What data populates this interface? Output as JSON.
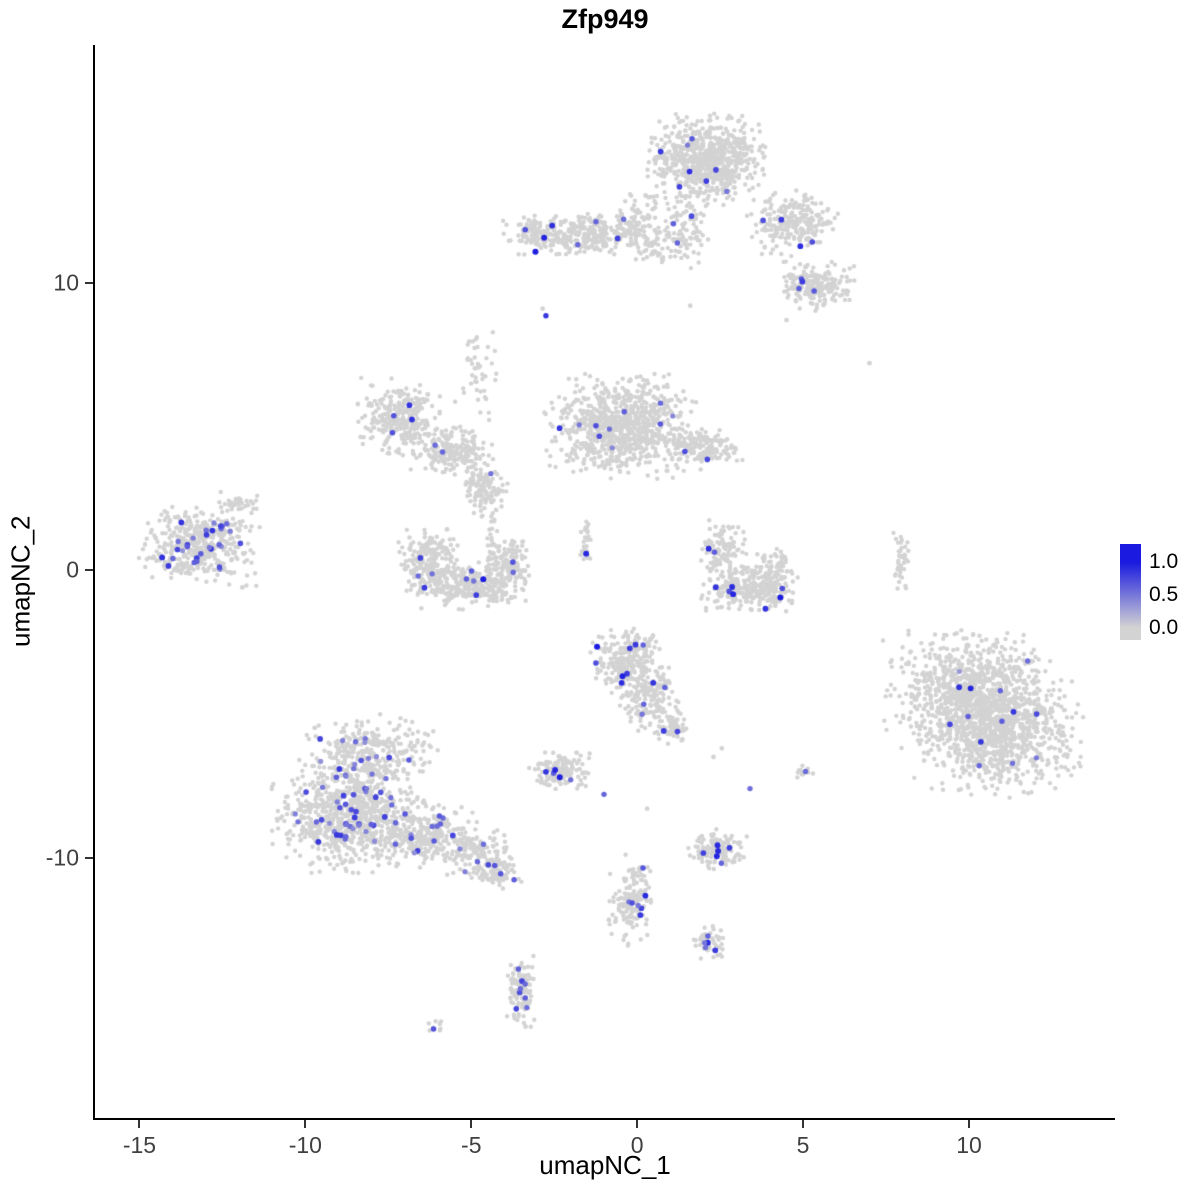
{
  "chart_data": {
    "type": "scatter",
    "title": "Zfp949",
    "xlabel": "umapNC_1",
    "ylabel": "umapNC_2",
    "xlim": [
      -16.34,
      14.4
    ],
    "ylim": [
      -19.06,
      18.27
    ],
    "x_ticks": [
      -15,
      -10,
      -5,
      0,
      5,
      10
    ],
    "y_ticks": [
      -10,
      0,
      10
    ],
    "grid": false,
    "legend": {
      "position": "right",
      "tick_labels": [
        "1.0",
        "0.5",
        "0.0"
      ],
      "tick_values": [
        1.0,
        0.5,
        0.0
      ]
    },
    "style": {
      "background": "#ffffff",
      "axis_color": "#000000",
      "tick_color": "#333333",
      "tick_label_color": "#404040",
      "base_point_color": "#d3d3d3",
      "low_color": "#d3d3d3",
      "high_color": "#1a1ae0"
    },
    "clusters": [
      {
        "name": "top-main",
        "cx": 2.1,
        "cy": 14.3,
        "sx": 0.78,
        "sy": 0.68,
        "n": 700,
        "en": 8,
        "ev": [
          0.45,
          1.0
        ]
      },
      {
        "name": "top-bridge",
        "cx": 0.0,
        "cy": 12.5,
        "sx": 0.55,
        "sy": 0.4,
        "n": 60,
        "en": 1,
        "ev": [
          0.5,
          0.7
        ]
      },
      {
        "name": "top-trail",
        "cx": 1.45,
        "cy": 11.9,
        "sx": 0.3,
        "sy": 0.6,
        "n": 80,
        "en": 2,
        "ev": [
          0.5,
          0.8
        ]
      },
      {
        "name": "top-right",
        "cx": 4.7,
        "cy": 12.1,
        "sx": 0.6,
        "sy": 0.5,
        "n": 230,
        "en": 4,
        "ev": [
          0.5,
          1.0
        ]
      },
      {
        "name": "right-upper",
        "cx": 5.4,
        "cy": 9.9,
        "sx": 0.5,
        "sy": 0.38,
        "n": 190,
        "en": 4,
        "ev": [
          0.6,
          1.0
        ]
      },
      {
        "name": "band-top",
        "cx": -1.6,
        "cy": 11.7,
        "sx": 1.05,
        "sy": 0.34,
        "n": 320,
        "en": 5,
        "ev": [
          0.5,
          1.0
        ]
      },
      {
        "name": "band-left-cap",
        "cx": -3.1,
        "cy": 11.65,
        "sx": 0.26,
        "sy": 0.3,
        "n": 70,
        "en": 2,
        "ev": [
          0.85,
          1.0
        ]
      },
      {
        "name": "band-right",
        "cx": 0.6,
        "cy": 11.35,
        "sx": 0.4,
        "sy": 0.3,
        "n": 60,
        "en": 1,
        "ev": [
          0.5,
          0.8
        ]
      },
      {
        "name": "mid-main",
        "cx": -0.5,
        "cy": 5.0,
        "sx": 0.98,
        "sy": 0.78,
        "n": 820,
        "en": 10,
        "ev": [
          0.4,
          0.95
        ]
      },
      {
        "name": "mid-right-ext",
        "cx": 2.0,
        "cy": 4.2,
        "sx": 0.5,
        "sy": 0.3,
        "n": 150,
        "en": 2,
        "ev": [
          0.5,
          0.9
        ]
      },
      {
        "name": "arc-left-a",
        "cx": -7.1,
        "cy": 5.3,
        "sx": 0.6,
        "sy": 0.6,
        "n": 280,
        "en": 4,
        "ev": [
          0.5,
          0.9
        ]
      },
      {
        "name": "arc-left-b",
        "cx": -5.6,
        "cy": 4.1,
        "sx": 0.55,
        "sy": 0.4,
        "n": 200,
        "en": 2,
        "ev": [
          0.4,
          0.8
        ]
      },
      {
        "name": "arc-left-trail",
        "cx": -4.8,
        "cy": 6.9,
        "sx": 0.3,
        "sy": 0.75,
        "n": 45,
        "en": 0,
        "ev": [
          0,
          0
        ]
      },
      {
        "name": "mid-small",
        "cx": -4.6,
        "cy": 2.8,
        "sx": 0.3,
        "sy": 0.35,
        "n": 110,
        "en": 1,
        "ev": [
          0.5,
          0.7
        ]
      },
      {
        "name": "mid-vtrail",
        "cx": -4.4,
        "cy": 1.2,
        "sx": 0.16,
        "sy": 0.8,
        "n": 35,
        "en": 0,
        "ev": [
          0,
          0
        ]
      },
      {
        "name": "far-left",
        "cx": -13.2,
        "cy": 0.9,
        "sx": 0.78,
        "sy": 0.62,
        "n": 430,
        "en": 30,
        "ev": [
          0.35,
          0.9
        ]
      },
      {
        "name": "far-left-cap",
        "cx": -12.0,
        "cy": 2.3,
        "sx": 0.28,
        "sy": 0.18,
        "n": 40,
        "en": 0,
        "ev": [
          0,
          0
        ]
      },
      {
        "name": "u-left-a",
        "cx": -6.3,
        "cy": 0.4,
        "sx": 0.45,
        "sy": 0.45,
        "n": 180,
        "en": 3,
        "ev": [
          0.5,
          0.9
        ]
      },
      {
        "name": "u-left-b",
        "cx": -5.1,
        "cy": -0.55,
        "sx": 0.85,
        "sy": 0.35,
        "n": 320,
        "en": 6,
        "ev": [
          0.5,
          1.0
        ]
      },
      {
        "name": "u-left-c",
        "cx": -3.9,
        "cy": 0.3,
        "sx": 0.3,
        "sy": 0.42,
        "n": 110,
        "en": 2,
        "ev": [
          0.5,
          0.8
        ]
      },
      {
        "name": "tiny-strip",
        "cx": -1.55,
        "cy": 0.9,
        "sx": 0.1,
        "sy": 0.4,
        "n": 25,
        "en": 1,
        "ev": [
          0.9,
          1.0
        ]
      },
      {
        "name": "u-right-a",
        "cx": 2.6,
        "cy": 0.7,
        "sx": 0.3,
        "sy": 0.45,
        "n": 100,
        "en": 2,
        "ev": [
          0.6,
          1.0
        ]
      },
      {
        "name": "u-right-b",
        "cx": 3.1,
        "cy": -0.6,
        "sx": 0.5,
        "sy": 0.35,
        "n": 190,
        "en": 4,
        "ev": [
          0.7,
          1.0
        ]
      },
      {
        "name": "u-right-c",
        "cx": 4.1,
        "cy": -0.4,
        "sx": 0.35,
        "sy": 0.5,
        "n": 150,
        "en": 3,
        "ev": [
          0.7,
          1.0
        ]
      },
      {
        "name": "cent-a",
        "cx": -0.3,
        "cy": -3.2,
        "sx": 0.5,
        "sy": 0.55,
        "n": 240,
        "en": 8,
        "ev": [
          0.5,
          1.0
        ]
      },
      {
        "name": "cent-b",
        "cx": 0.4,
        "cy": -4.5,
        "sx": 0.4,
        "sy": 0.5,
        "n": 150,
        "en": 4,
        "ev": [
          0.5,
          0.9
        ]
      },
      {
        "name": "cent-c",
        "cx": 1.1,
        "cy": -5.5,
        "sx": 0.25,
        "sy": 0.3,
        "n": 60,
        "en": 2,
        "ev": [
          0.6,
          0.9
        ]
      },
      {
        "name": "big-right-a",
        "cx": 10.1,
        "cy": -4.2,
        "sx": 1.15,
        "sy": 0.95,
        "n": 800,
        "en": 6,
        "ev": [
          0.3,
          1.0
        ]
      },
      {
        "name": "big-right-b",
        "cx": 10.9,
        "cy": -5.7,
        "sx": 1.1,
        "sy": 0.95,
        "n": 800,
        "en": 8,
        "ev": [
          0.3,
          0.9
        ]
      },
      {
        "name": "right-strip",
        "cx": 7.95,
        "cy": 0.4,
        "sx": 0.1,
        "sy": 0.45,
        "n": 40,
        "en": 0,
        "ev": [
          0,
          0
        ]
      },
      {
        "name": "small-left-mid",
        "cx": -2.3,
        "cy": -7.0,
        "sx": 0.42,
        "sy": 0.32,
        "n": 130,
        "en": 5,
        "ev": [
          0.5,
          1.0
        ]
      },
      {
        "name": "bl-top",
        "cx": -8.0,
        "cy": -6.3,
        "sx": 0.85,
        "sy": 0.55,
        "n": 280,
        "en": 15,
        "ev": [
          0.35,
          0.8
        ]
      },
      {
        "name": "bl-main",
        "cx": -8.7,
        "cy": -8.5,
        "sx": 1.0,
        "sy": 0.88,
        "n": 760,
        "en": 45,
        "ev": [
          0.35,
          0.85
        ]
      },
      {
        "name": "bl-right",
        "cx": -6.4,
        "cy": -9.2,
        "sx": 0.7,
        "sy": 0.5,
        "n": 280,
        "en": 12,
        "ev": [
          0.35,
          0.8
        ]
      },
      {
        "name": "bl-tail",
        "cx": -4.9,
        "cy": -9.9,
        "sx": 0.5,
        "sy": 0.4,
        "n": 140,
        "en": 6,
        "ev": [
          0.4,
          0.8
        ]
      },
      {
        "name": "bl-tail2",
        "cx": -4.1,
        "cy": -10.5,
        "sx": 0.3,
        "sy": 0.25,
        "n": 60,
        "en": 2,
        "ev": [
          0.4,
          0.8
        ]
      },
      {
        "name": "small-bottom",
        "cx": 2.4,
        "cy": -9.7,
        "sx": 0.4,
        "sy": 0.3,
        "n": 130,
        "en": 6,
        "ev": [
          0.5,
          1.0
        ]
      },
      {
        "name": "v-streak",
        "cx": -0.2,
        "cy": -11.8,
        "sx": 0.28,
        "sy": 0.55,
        "n": 120,
        "en": 6,
        "ev": [
          0.5,
          1.0
        ]
      },
      {
        "name": "v-streak-top",
        "cx": 0.0,
        "cy": -10.5,
        "sx": 0.2,
        "sy": 0.3,
        "n": 25,
        "en": 1,
        "ev": [
          0.5,
          0.7
        ]
      },
      {
        "name": "diag-tail",
        "cx": 2.2,
        "cy": -13.0,
        "sx": 0.22,
        "sy": 0.27,
        "n": 50,
        "en": 5,
        "ev": [
          0.5,
          0.95
        ]
      },
      {
        "name": "bottom-streak",
        "cx": -3.5,
        "cy": -14.6,
        "sx": 0.2,
        "sy": 0.62,
        "n": 110,
        "en": 8,
        "ev": [
          0.5,
          0.9
        ]
      },
      {
        "name": "iso-bl",
        "cx": -6.1,
        "cy": -15.9,
        "sx": 0.16,
        "sy": 0.12,
        "n": 8,
        "en": 1,
        "ev": [
          0.5,
          0.7
        ]
      },
      {
        "name": "iso-right",
        "cx": 5.0,
        "cy": -7.0,
        "sx": 0.16,
        "sy": 0.13,
        "n": 12,
        "en": 1,
        "ev": [
          0.5,
          0.7
        ]
      }
    ],
    "extra_points": [
      {
        "x": 7.0,
        "y": 7.2,
        "v": 0
      },
      {
        "x": 1.6,
        "y": 9.2,
        "v": 0
      },
      {
        "x": -2.85,
        "y": 9.1,
        "v": 0
      },
      {
        "x": -2.75,
        "y": 8.85,
        "v": 0.85
      },
      {
        "x": 4.5,
        "y": 8.7,
        "v": 0
      },
      {
        "x": -11.9,
        "y": -0.6,
        "v": 0
      },
      {
        "x": -1.0,
        "y": -7.8,
        "v": 0.6
      },
      {
        "x": 3.4,
        "y": -7.6,
        "v": 0.55
      },
      {
        "x": 2.3,
        "y": -6.5,
        "v": 0
      },
      {
        "x": 2.55,
        "y": -6.2,
        "v": 0
      },
      {
        "x": 0.3,
        "y": -8.3,
        "v": 0
      }
    ]
  }
}
